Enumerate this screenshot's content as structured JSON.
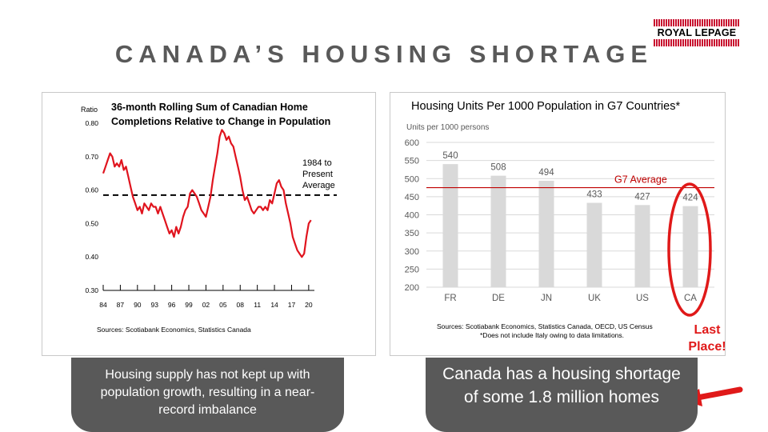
{
  "slide": {
    "title": "CANADA’S HOUSING SHORTAGE",
    "logo_text": "ROYAL LEPAGE",
    "logo_color": "#c8102e"
  },
  "left_panel": {
    "caption": "Housing supply has not kept up with population growth, resulting in a near-record imbalance"
  },
  "right_panel": {
    "caption": "Canada has a housing shortage of some 1.8 million homes",
    "callout": "Last Place!",
    "callout_color": "#e01919"
  },
  "chart_data": [
    {
      "type": "line",
      "title": "36-month Rolling Sum of Canadian Home Completions Relative to Change in Population",
      "ylabel": "Ratio",
      "ylim": [
        0.3,
        0.8
      ],
      "yticks": [
        "0.80",
        "0.70",
        "0.60",
        "0.50",
        "0.40",
        "0.30"
      ],
      "xlim": [
        1984,
        2021
      ],
      "xticks": [
        "84",
        "87",
        "90",
        "93",
        "96",
        "99",
        "02",
        "05",
        "08",
        "11",
        "14",
        "17",
        "20"
      ],
      "series": [
        {
          "color": "#e0141e",
          "x": [
            1984.0,
            1984.4,
            1984.8,
            1985.2,
            1985.6,
            1986.0,
            1986.4,
            1986.8,
            1987.2,
            1987.6,
            1988.0,
            1988.4,
            1988.8,
            1989.2,
            1989.6,
            1990.0,
            1990.4,
            1990.8,
            1991.2,
            1991.6,
            1992.0,
            1992.4,
            1992.8,
            1993.2,
            1993.6,
            1994.0,
            1994.4,
            1994.8,
            1995.2,
            1995.6,
            1996.0,
            1996.4,
            1996.8,
            1997.2,
            1997.6,
            1998.0,
            1998.4,
            1998.8,
            1999.2,
            1999.6,
            2000.0,
            2000.4,
            2000.8,
            2001.2,
            2001.6,
            2002.0,
            2002.4,
            2002.8,
            2003.2,
            2003.6,
            2004.0,
            2004.4,
            2004.8,
            2005.2,
            2005.6,
            2006.0,
            2006.4,
            2006.8,
            2007.2,
            2007.6,
            2008.0,
            2008.4,
            2008.8,
            2009.2,
            2009.6,
            2010.0,
            2010.4,
            2010.8,
            2011.2,
            2011.6,
            2012.0,
            2012.4,
            2012.8,
            2013.2,
            2013.6,
            2014.0,
            2014.4,
            2014.8,
            2015.2,
            2015.6,
            2016.0,
            2016.4,
            2016.8,
            2017.2,
            2017.6,
            2018.0,
            2018.4,
            2018.8,
            2019.2,
            2019.6,
            2020.0,
            2020.4
          ],
          "y": [
            0.65,
            0.67,
            0.69,
            0.71,
            0.7,
            0.67,
            0.68,
            0.67,
            0.69,
            0.66,
            0.67,
            0.64,
            0.61,
            0.58,
            0.56,
            0.54,
            0.55,
            0.53,
            0.56,
            0.55,
            0.54,
            0.56,
            0.55,
            0.55,
            0.53,
            0.55,
            0.53,
            0.51,
            0.49,
            0.47,
            0.48,
            0.46,
            0.49,
            0.47,
            0.49,
            0.52,
            0.54,
            0.55,
            0.59,
            0.6,
            0.59,
            0.58,
            0.56,
            0.54,
            0.53,
            0.52,
            0.55,
            0.58,
            0.63,
            0.67,
            0.71,
            0.76,
            0.78,
            0.77,
            0.75,
            0.76,
            0.74,
            0.73,
            0.7,
            0.67,
            0.64,
            0.6,
            0.57,
            0.58,
            0.56,
            0.54,
            0.53,
            0.54,
            0.55,
            0.55,
            0.54,
            0.55,
            0.54,
            0.57,
            0.56,
            0.59,
            0.62,
            0.63,
            0.61,
            0.6,
            0.56,
            0.53,
            0.5,
            0.46,
            0.44,
            0.42,
            0.41,
            0.4,
            0.41,
            0.46,
            0.5,
            0.51
          ]
        }
      ],
      "reference_line": {
        "value": 0.585,
        "label": [
          "1984 to",
          "Present",
          "Average"
        ],
        "style": "dashed"
      },
      "source": "Sources: Scotiabank Economics, Statistics Canada"
    },
    {
      "type": "bar",
      "title": "Housing Units Per 1000 Population in G7 Countries*",
      "ylabel": "Units per 1000 persons",
      "categories": [
        "FR",
        "DE",
        "JN",
        "UK",
        "US",
        "CA"
      ],
      "values": [
        540,
        508,
        494,
        433,
        427,
        424
      ],
      "value_labels": [
        "540",
        "508",
        "494",
        "433",
        "427",
        "424"
      ],
      "ylim": [
        200,
        600
      ],
      "yticks": [
        "600",
        "550",
        "500",
        "450",
        "400",
        "350",
        "300",
        "250",
        "200"
      ],
      "grid": true,
      "bar_color": "#d9d9d9",
      "reference_line": {
        "value": 475,
        "label": "G7 Average",
        "color": "#c00000"
      },
      "highlight_category": "CA",
      "source": [
        "Sources: Scotiabank Economics, Statistics Canada, OECD, US Census",
        "*Does not include Italy owing to data limitations."
      ]
    }
  ]
}
